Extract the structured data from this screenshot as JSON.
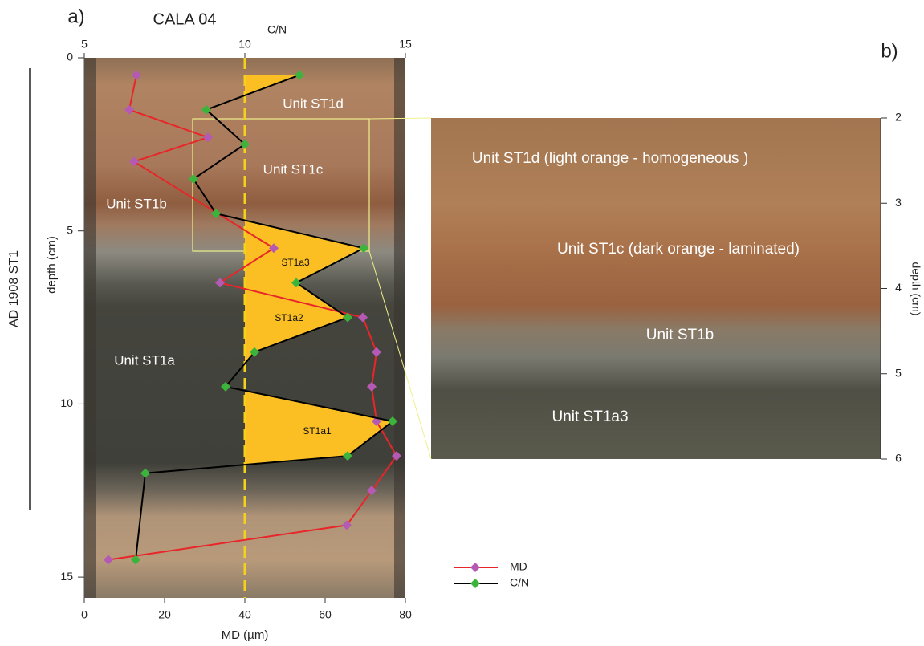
{
  "chart_data": [
    {
      "type": "line",
      "panel_label": "a)",
      "title": "CALA 04",
      "x2_label": "C/N",
      "xlabel": "MD (µm)",
      "ylabel": "depth (cm)",
      "side_label": "AD 1908 ST1",
      "ylim": [
        0,
        15.6
      ],
      "yticks": [
        0,
        5,
        10,
        15
      ],
      "xlim": [
        0,
        80
      ],
      "xticks": [
        0,
        20,
        40,
        60,
        80
      ],
      "x2lim": [
        5,
        15
      ],
      "x2ticks": [
        5,
        10,
        15
      ],
      "threshold": 10,
      "threshold_color": "#f5d21a",
      "fill_color": "#fbbf24",
      "series": [
        {
          "name": "MD",
          "color": "#e8262a",
          "marker_color": "#b45ab4",
          "axis": "x",
          "depth": [
            0.5,
            1.5,
            2.3,
            3,
            5.5,
            6.5,
            7.5,
            8.5,
            9.5,
            10.5,
            11.5,
            12.5,
            13.5,
            14.5
          ],
          "values": [
            13,
            11.2,
            30.8,
            12.4,
            47.2,
            33.8,
            69.4,
            72.8,
            71.6,
            72.8,
            77.8,
            71.6,
            65.4,
            6
          ]
        },
        {
          "name": "C/N",
          "color": "#000000",
          "marker_color": "#3cb43c",
          "axis": "x2",
          "depth": [
            0.5,
            1.5,
            2.5,
            3.5,
            4.5,
            5.5,
            6.5,
            7.5,
            8.5,
            9.5,
            10.5,
            11.5,
            12,
            14.5
          ],
          "values": [
            11.7,
            8.8,
            10,
            8.4,
            9.1,
            13.7,
            11.6,
            13.2,
            10.3,
            9.4,
            14.6,
            13.2,
            6.9,
            6.6
          ]
        }
      ],
      "annotations": [
        "Unit ST1d",
        "Unit ST1c",
        "Unit ST1b",
        "Unit ST1a",
        "ST1a3",
        "ST1a2",
        "ST1a1"
      ]
    },
    {
      "type": "image",
      "panel_label": "b)",
      "ylabel": "depth (cm)",
      "ylim": [
        2,
        6
      ],
      "yticks": [
        2,
        3,
        4,
        5,
        6
      ],
      "annotations": [
        "Unit ST1d (light orange - homogeneous )",
        "Unit ST1c  (dark orange - laminated)",
        "Unit ST1b",
        "Unit ST1a3"
      ]
    }
  ]
}
